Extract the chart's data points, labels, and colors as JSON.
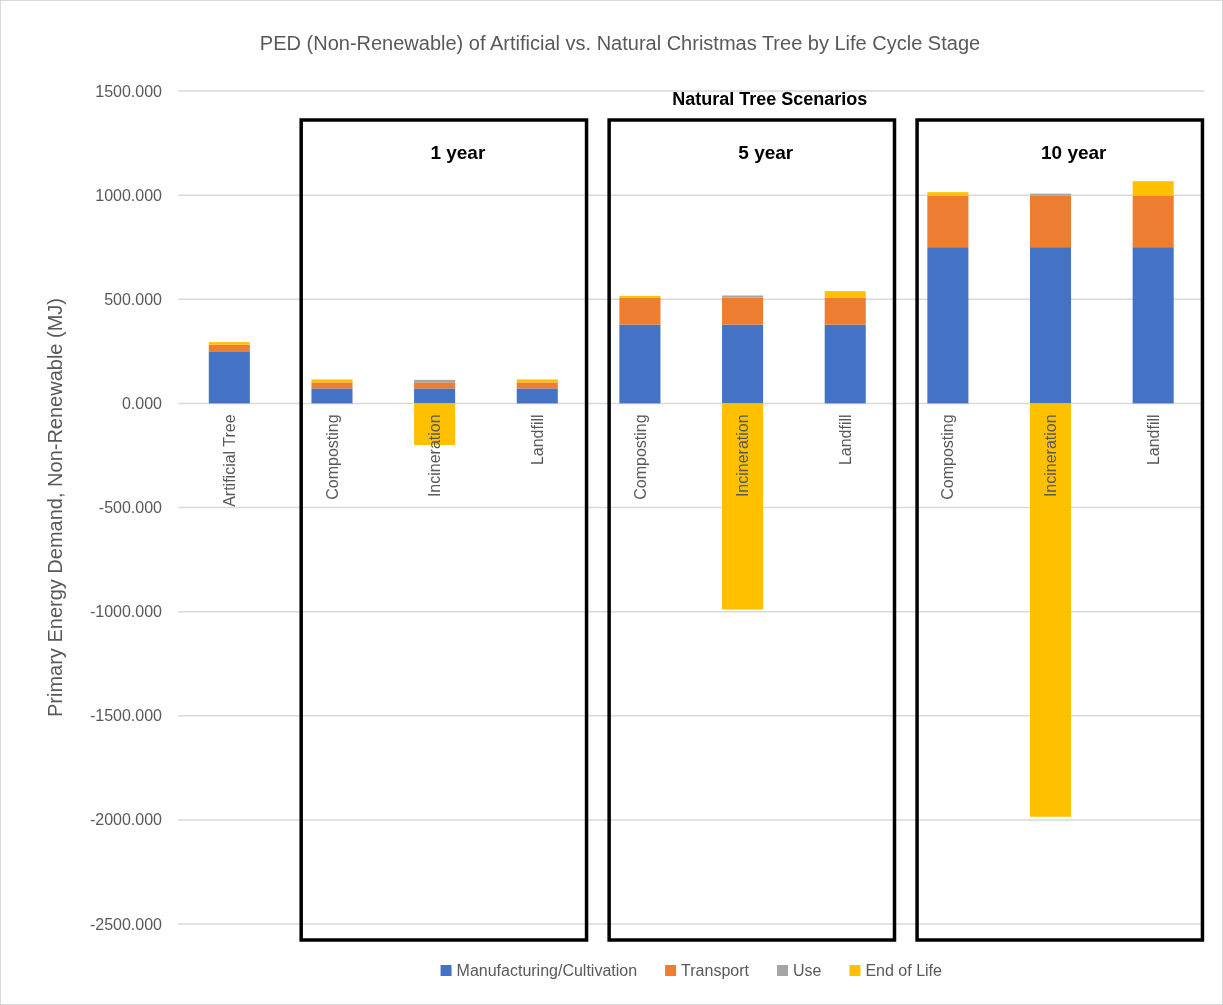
{
  "chart_data": {
    "type": "bar",
    "title": "PED (Non-Renewable) of Artificial vs. Natural Christmas Tree by Life Cycle Stage",
    "ylabel": "Primary Energy Demand, Non-Renewable (MJ)",
    "categories": [
      "Artificial Tree",
      "Composting",
      "Incineration",
      "Landfill",
      "Composting",
      "Incineration",
      "Landfill",
      "Composting",
      "Incineration",
      "Landfill"
    ],
    "stacked": true,
    "series": [
      {
        "name": "Manufacturing/Cultivation",
        "color": "#4472c4",
        "values": [
          250,
          72,
          72,
          72,
          378,
          378,
          378,
          750,
          750,
          750
        ]
      },
      {
        "name": "Transport",
        "color": "#ed7d31",
        "values": [
          32,
          29,
          29,
          29,
          130,
          130,
          130,
          247,
          247,
          247
        ]
      },
      {
        "name": "Use",
        "color": "#a5a5a5",
        "values": [
          0,
          0,
          12,
          0,
          0,
          10,
          0,
          0,
          10,
          0
        ]
      },
      {
        "name": "End of Life",
        "color": "#ffc000",
        "values": [
          12,
          14,
          -200,
          14,
          8,
          -990,
          31,
          17,
          -1985,
          70
        ]
      }
    ],
    "ylim": [
      -2500,
      1500
    ],
    "yticks": [
      {
        "value": -2500,
        "label": "-2500.000"
      },
      {
        "value": -2000,
        "label": "-2000.000"
      },
      {
        "value": -1500,
        "label": "-1500.000"
      },
      {
        "value": -1000,
        "label": "-1000.000"
      },
      {
        "value": -500,
        "label": "-500.000"
      },
      {
        "value": 0,
        "label": "0.000"
      },
      {
        "value": 500,
        "label": "500.000"
      },
      {
        "value": 1000,
        "label": "1000.000"
      },
      {
        "value": 1500,
        "label": "1500.000"
      }
    ],
    "grid": "y",
    "legend": "bottom",
    "annotations": [
      "Natural Tree Scenarios",
      "1 year",
      "5 year",
      "10 year"
    ]
  }
}
